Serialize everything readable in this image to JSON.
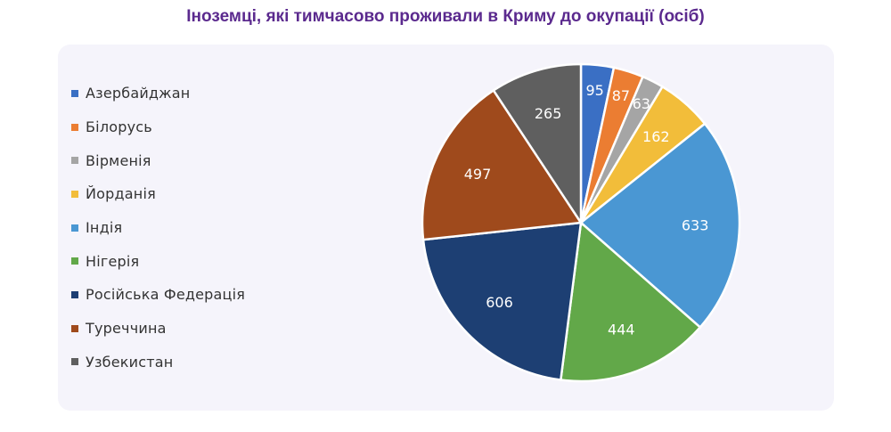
{
  "chart_data": {
    "type": "pie",
    "title": "Іноземці, які тимчасово проживали в Криму до окупації (осіб)",
    "legend_position": "left",
    "slices": [
      {
        "label": "Азербайджан",
        "value": 95,
        "color": "#3a6fc4"
      },
      {
        "label": "Білорусь",
        "value": 87,
        "color": "#eb7d32"
      },
      {
        "label": "Вірменія",
        "value": 63,
        "color": "#a5a5a5"
      },
      {
        "label": "Йорданія",
        "value": 162,
        "color": "#f2bd3a"
      },
      {
        "label": "Індія",
        "value": 633,
        "color": "#4a97d3"
      },
      {
        "label": "Нігерія",
        "value": 444,
        "color": "#62a849"
      },
      {
        "label": "Російська Федерація",
        "value": 606,
        "color": "#1d3f73"
      },
      {
        "label": "Туреччина",
        "value": 497,
        "color": "#9f4a1c"
      },
      {
        "label": "Узбекистан",
        "value": 265,
        "color": "#5f5f5f"
      }
    ]
  }
}
